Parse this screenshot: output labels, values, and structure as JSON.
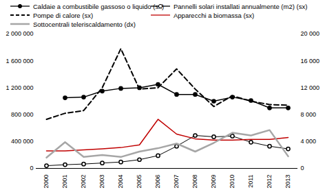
{
  "chart_data": {
    "type": "line",
    "categories": [
      "2000",
      "2001",
      "2002",
      "2003",
      "2004",
      "2005",
      "2006",
      "2007",
      "2008",
      "2009",
      "2010",
      "2011",
      "2012",
      "2013"
    ],
    "ylim": [
      0,
      2000000
    ],
    "yticks": [
      0,
      {
        "value": 400000,
        "label": "400 000"
      },
      {
        "value": 800000,
        "label": "800 000"
      },
      {
        "value": 1200000,
        "label": "1 200 000"
      },
      {
        "value": 1600000,
        "label": "1 600 000"
      },
      {
        "value": 2000000,
        "label": "2 000 000"
      }
    ],
    "y2lim": [
      0,
      20000
    ],
    "y2ticks": [
      0,
      {
        "value": 4000,
        "label": "4 000"
      },
      {
        "value": 8000,
        "label": "8 000"
      },
      {
        "value": 12000,
        "label": "12 000"
      },
      {
        "value": 16000,
        "label": "16 000"
      },
      {
        "value": 20000,
        "label": "20 000"
      }
    ],
    "grid": false,
    "legend": "top",
    "series": [
      {
        "name": "Caldaie a combustibile gassoso o liquido (sx)",
        "color": "#000000",
        "line_style": "solid",
        "marker": "circle",
        "values": [
          null,
          1050000,
          1060000,
          1150000,
          1190000,
          1200000,
          1250000,
          1100000,
          1100000,
          1000000,
          1060000,
          1010000,
          900000,
          900000
        ]
      },
      {
        "name": "Pannelli solari installati annualmente (m2) (sx)",
        "color": "#000000",
        "line_style": "solid",
        "marker": "open_circle",
        "values": [
          40000,
          55000,
          65000,
          80000,
          95000,
          130000,
          190000,
          330000,
          490000,
          470000,
          480000,
          390000,
          330000,
          290000
        ]
      },
      {
        "name": "Pompe di calore (sx)",
        "color": "#000000",
        "line_style": "dashed",
        "values": [
          730000,
          820000,
          860000,
          1200000,
          1780000,
          1180000,
          1200000,
          1480000,
          1180000,
          920000,
          1080000,
          1000000,
          950000,
          940000
        ]
      },
      {
        "name": "Apparecchi a biomassa (sx)",
        "color": "#c00000",
        "line_style": "solid",
        "values": [
          260000,
          260000,
          275000,
          290000,
          310000,
          350000,
          730000,
          510000,
          440000,
          420000,
          420000,
          430000,
          430000,
          460000
        ]
      },
      {
        "name": "Sottocentrali teleriscaldamento (dx)",
        "color": "#a6a6a6",
        "line_style": "solid",
        "axis": "y2",
        "values": [
          1600,
          3900,
          1700,
          2000,
          1700,
          2500,
          3000,
          3700,
          2500,
          3800,
          5300,
          4900,
          5700,
          1800
        ]
      }
    ]
  }
}
